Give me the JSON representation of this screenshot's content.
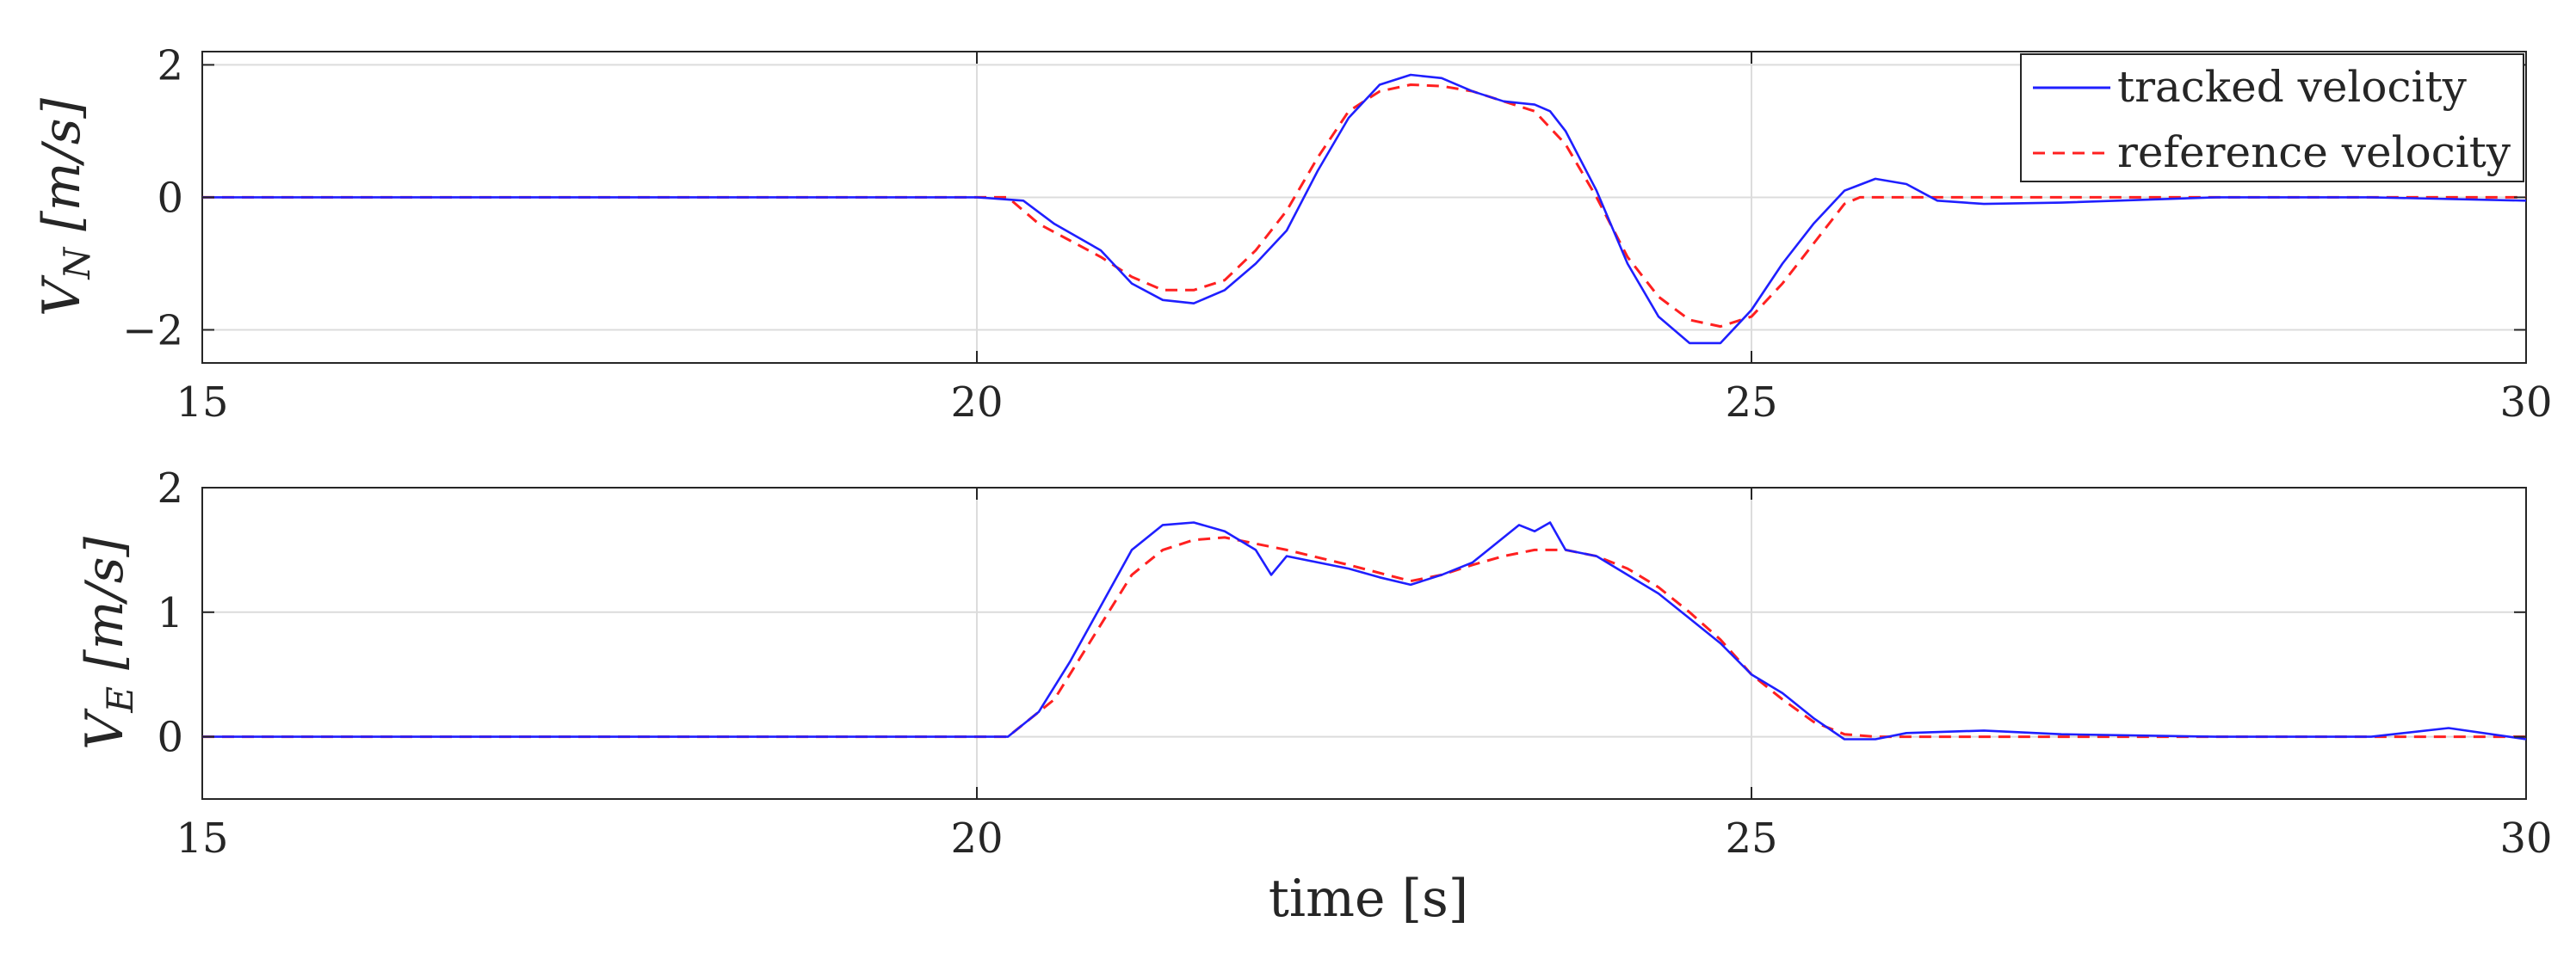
{
  "colors": {
    "tracked": "#1f1fff",
    "reference": "#ff2020",
    "grid": "#dcdcdc",
    "axis": "#262626"
  },
  "chart_data": [
    {
      "type": "line",
      "ylabel": "V_N [m/s]",
      "ylabel_main": "V",
      "ylabel_sub": "N",
      "ylabel_units": " [m/s]",
      "xlim": [
        15,
        30
      ],
      "ylim": [
        -2.5,
        2.2
      ],
      "xticks": [
        15,
        20,
        25,
        30
      ],
      "xtick_labels": [
        "15",
        "20",
        "25",
        "30"
      ],
      "yticks": [
        -2,
        0,
        2
      ],
      "ytick_labels": [
        "−2",
        "0",
        "2"
      ],
      "grid": true,
      "legend": {
        "location": "top-right",
        "entries": [
          "tracked velocity",
          "reference velocity"
        ]
      },
      "series": [
        {
          "name": "tracked velocity",
          "style": "solid",
          "x": [
            15,
            16,
            17,
            18,
            19,
            20,
            20.3,
            20.5,
            20.8,
            21.0,
            21.2,
            21.4,
            21.6,
            21.8,
            22.0,
            22.2,
            22.4,
            22.6,
            22.8,
            23.0,
            23.2,
            23.4,
            23.6,
            23.7,
            23.8,
            24.0,
            24.2,
            24.4,
            24.6,
            24.8,
            25.0,
            25.2,
            25.4,
            25.6,
            25.8,
            26.0,
            26.2,
            26.5,
            27,
            28,
            29,
            30
          ],
          "y": [
            0,
            0,
            0,
            0,
            0,
            0,
            -0.05,
            -0.4,
            -0.8,
            -1.3,
            -1.55,
            -1.6,
            -1.4,
            -1.0,
            -0.5,
            0.4,
            1.2,
            1.7,
            1.85,
            1.8,
            1.6,
            1.45,
            1.4,
            1.3,
            1.0,
            0.1,
            -1.0,
            -1.8,
            -2.2,
            -2.2,
            -1.7,
            -1.0,
            -0.4,
            0.1,
            0.28,
            0.2,
            -0.05,
            -0.1,
            -0.08,
            0,
            0,
            -0.05
          ]
        },
        {
          "name": "reference velocity",
          "style": "dashed",
          "x": [
            15,
            16,
            17,
            18,
            19,
            20,
            20.2,
            20.4,
            20.8,
            21.0,
            21.2,
            21.4,
            21.6,
            21.8,
            22.0,
            22.2,
            22.4,
            22.6,
            22.8,
            23.0,
            23.2,
            23.4,
            23.6,
            23.8,
            24.0,
            24.2,
            24.4,
            24.6,
            24.8,
            25.0,
            25.2,
            25.4,
            25.6,
            25.7,
            26,
            27,
            28,
            29,
            30
          ],
          "y": [
            0,
            0,
            0,
            0,
            0,
            0,
            0,
            -0.4,
            -0.9,
            -1.2,
            -1.4,
            -1.4,
            -1.25,
            -0.8,
            -0.2,
            0.6,
            1.3,
            1.6,
            1.7,
            1.68,
            1.6,
            1.45,
            1.3,
            0.8,
            0,
            -0.9,
            -1.5,
            -1.85,
            -1.95,
            -1.8,
            -1.3,
            -0.7,
            -0.1,
            0,
            0,
            0,
            0,
            0,
            0
          ]
        }
      ]
    },
    {
      "type": "line",
      "ylabel": "V_E [m/s]",
      "ylabel_main": "V",
      "ylabel_sub": "E",
      "ylabel_units": " [m/s]",
      "xlabel": "time [s]",
      "xlim": [
        15,
        30
      ],
      "ylim": [
        -0.5,
        2.0
      ],
      "xticks": [
        15,
        20,
        25,
        30
      ],
      "xtick_labels": [
        "15",
        "20",
        "25",
        "30"
      ],
      "yticks": [
        0,
        1,
        2
      ],
      "ytick_labels": [
        "0",
        "1",
        "2"
      ],
      "grid": true,
      "series": [
        {
          "name": "tracked velocity",
          "style": "solid",
          "x": [
            15,
            16,
            17,
            18,
            19,
            20,
            20.2,
            20.4,
            20.6,
            20.8,
            21.0,
            21.2,
            21.4,
            21.6,
            21.8,
            21.9,
            22.0,
            22.2,
            22.4,
            22.6,
            22.8,
            23.0,
            23.2,
            23.4,
            23.5,
            23.6,
            23.7,
            23.8,
            24.0,
            24.2,
            24.4,
            24.6,
            24.8,
            25.0,
            25.2,
            25.4,
            25.6,
            25.8,
            26.0,
            26.5,
            27,
            28,
            29,
            29.5,
            30
          ],
          "y": [
            0,
            0,
            0,
            0,
            0,
            0,
            0,
            0.2,
            0.6,
            1.05,
            1.5,
            1.7,
            1.72,
            1.65,
            1.5,
            1.3,
            1.45,
            1.4,
            1.35,
            1.28,
            1.22,
            1.3,
            1.4,
            1.6,
            1.7,
            1.65,
            1.72,
            1.5,
            1.45,
            1.3,
            1.15,
            0.95,
            0.75,
            0.5,
            0.35,
            0.15,
            -0.02,
            -0.02,
            0.03,
            0.05,
            0.02,
            0,
            0,
            0.07,
            -0.02
          ]
        },
        {
          "name": "reference velocity",
          "style": "dashed",
          "x": [
            15,
            16,
            17,
            18,
            19,
            20,
            20.2,
            20.5,
            20.8,
            21.0,
            21.2,
            21.4,
            21.6,
            22.0,
            22.4,
            22.8,
            23.0,
            23.2,
            23.4,
            23.6,
            23.8,
            24.0,
            24.2,
            24.4,
            24.6,
            24.8,
            25.0,
            25.2,
            25.4,
            25.6,
            25.8,
            26,
            27,
            28,
            29,
            30
          ],
          "y": [
            0,
            0,
            0,
            0,
            0,
            0,
            0,
            0.3,
            0.9,
            1.3,
            1.5,
            1.58,
            1.6,
            1.5,
            1.38,
            1.25,
            1.3,
            1.38,
            1.45,
            1.5,
            1.5,
            1.45,
            1.35,
            1.2,
            1.0,
            0.78,
            0.5,
            0.3,
            0.12,
            0.02,
            0,
            0,
            0,
            0,
            0,
            0
          ]
        }
      ]
    }
  ]
}
